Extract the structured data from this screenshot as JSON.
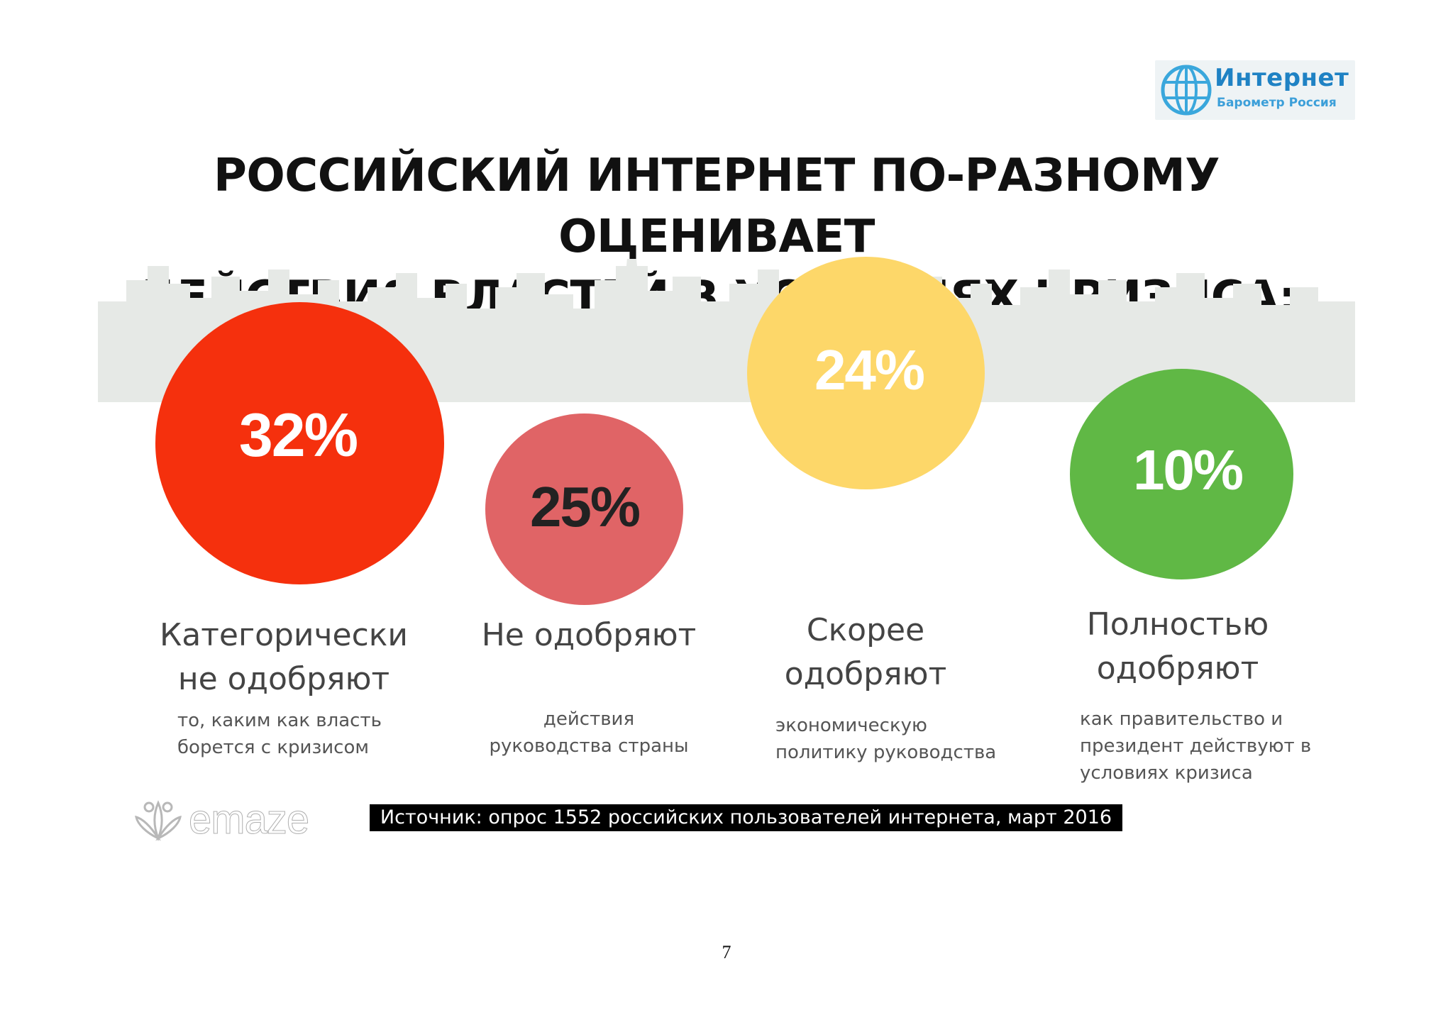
{
  "logo": {
    "title": "Интернет",
    "subtitle": "Барометр Россия",
    "icon": "globe-icon"
  },
  "title_lines": [
    "РОССИЙСКИЙ ИНТЕРНЕТ ПО-РАЗНОМУ ОЦЕНИВАЕТ",
    "ДЕЙСТВИЯ ВЛАСТЕЙ В УСЛОВИЯХ КРИЗИСА:"
  ],
  "chart_data": {
    "type": "bubble",
    "categories": [
      "Категорически не одобряют",
      "Не одобряют",
      "Скорее одобряют",
      "Полностью одобряют"
    ],
    "values": [
      32,
      25,
      24,
      10
    ],
    "value_labels": [
      "32%",
      "25%",
      "24%",
      "10%"
    ],
    "colors": [
      "#f5300d",
      "#e06466",
      "#fdd769",
      "#60b845"
    ],
    "label_colors": [
      "#ffffff",
      "#222222",
      "#ffffff",
      "#ffffff"
    ]
  },
  "items": [
    {
      "value_label": "32%",
      "label_lines": [
        "Категорически",
        "не одобряют"
      ],
      "desc_lines": [
        "то, каким как власть",
        "борется с кризисом"
      ]
    },
    {
      "value_label": "25%",
      "label_lines": [
        "Не одобряют"
      ],
      "desc_lines": [
        "действия",
        "руководства страны"
      ]
    },
    {
      "value_label": "24%",
      "label_lines": [
        "Скорее",
        "одобряют"
      ],
      "desc_lines": [
        "экономическую",
        "политику руководства"
      ]
    },
    {
      "value_label": "10%",
      "label_lines": [
        "Полностью",
        "одобряют"
      ],
      "desc_lines": [
        "как правительство и",
        "президент действуют в",
        "условиях кризиса"
      ]
    }
  ],
  "source": "Источник: опрос 1552 российских пользователей интернета, март 2016",
  "emaze_logo": "emaze",
  "page_number": "7"
}
